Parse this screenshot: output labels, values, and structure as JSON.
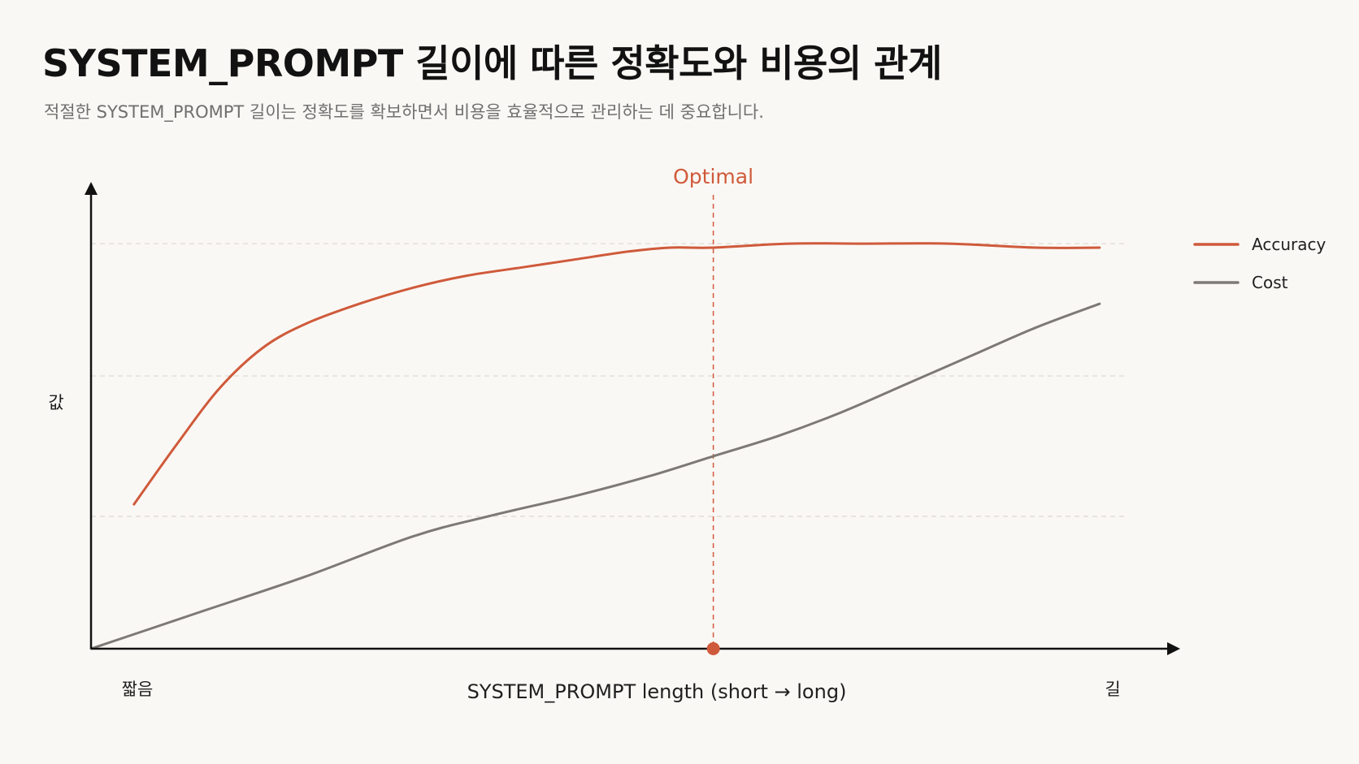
{
  "title": "SYSTEM_PROMPT 길이에 따른 정확도와 비용의 관계",
  "subtitle": "적절한 SYSTEM_PROMPT 길이는 정확도를 확보하면서 비용을 효율적으로 관리하는 데 중요합니다.",
  "chart_data": {
    "type": "line",
    "title": "SYSTEM_PROMPT 길이에 따른 정확도와 비용의 관계",
    "subtitle": "적절한 SYSTEM_PROMPT 길이는 정확도를 확보하면서 비용을 효율적으로 관리하는 데 중요합니다.",
    "xlabel": "SYSTEM_PROMPT length (short → long)",
    "ylabel": "값",
    "x_start_label": "짧음",
    "x_end_label": "길",
    "xlim": [
      0,
      1
    ],
    "ylim": [
      0,
      1
    ],
    "grid": {
      "horizontal": true,
      "vertical": false,
      "style": "dashed"
    },
    "gridlines_y": [
      0.33,
      0.68,
      1.01
    ],
    "legend": "top-right",
    "optimal": {
      "label": "Optimal",
      "x": 0.58,
      "color": "#cf5a3b"
    },
    "series": [
      {
        "name": "Accuracy",
        "color": "#cf5a3b",
        "x": [
          0.04,
          0.08,
          0.12,
          0.16,
          0.2,
          0.25,
          0.3,
          0.35,
          0.4,
          0.45,
          0.5,
          0.54,
          0.58,
          0.65,
          0.72,
          0.8,
          0.88,
          0.94
        ],
        "y": [
          0.36,
          0.51,
          0.65,
          0.75,
          0.81,
          0.86,
          0.9,
          0.93,
          0.95,
          0.97,
          0.99,
          1.0,
          1.0,
          1.01,
          1.01,
          1.01,
          1.0,
          1.0
        ]
      },
      {
        "name": "Cost",
        "color": "#7c7976",
        "x": [
          0.0,
          0.1,
          0.2,
          0.3,
          0.37,
          0.45,
          0.52,
          0.58,
          0.64,
          0.7,
          0.76,
          0.82,
          0.88,
          0.94
        ],
        "y": [
          0.0,
          0.09,
          0.18,
          0.28,
          0.33,
          0.38,
          0.43,
          0.48,
          0.53,
          0.59,
          0.66,
          0.73,
          0.8,
          0.86
        ]
      }
    ]
  }
}
